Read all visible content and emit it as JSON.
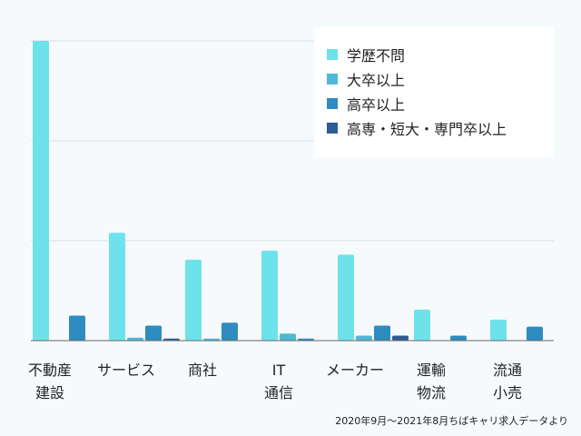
{
  "chart_data": {
    "type": "bar",
    "categories": [
      "不動産\n建設",
      "サービス",
      "商社",
      "IT\n通信",
      "メーカー",
      "運輸\n物流",
      "流通\n小売"
    ],
    "series": [
      {
        "name": "学歴不問",
        "color": "#6ee2ea",
        "values": [
          300,
          108,
          81,
          90,
          86,
          31,
          21
        ]
      },
      {
        "name": "大卒以上",
        "color": "#4db9d6",
        "values": [
          0,
          3,
          2,
          7,
          5,
          0,
          0
        ]
      },
      {
        "name": "高卒以上",
        "color": "#2e8cc0",
        "values": [
          25,
          15,
          18,
          2,
          15,
          5,
          14
        ]
      },
      {
        "name": "高専・短大・専門卒以上",
        "color": "#2b5c95",
        "values": [
          0,
          2,
          0,
          0,
          5,
          0,
          0
        ]
      }
    ],
    "ylim": [
      0,
      300
    ],
    "grid": true,
    "legend_position": "top-right",
    "source_note": "2020年9月〜2021年8月ちばキャリ求人データより"
  }
}
